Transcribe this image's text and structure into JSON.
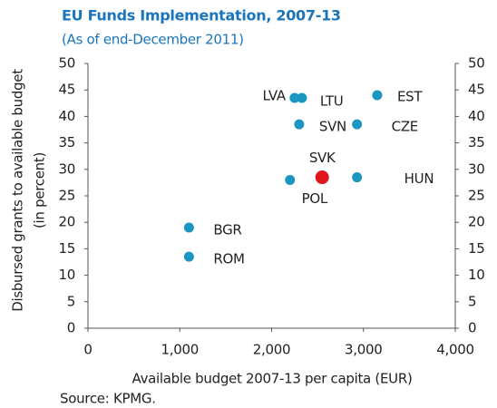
{
  "chart_data": {
    "type": "scatter",
    "title": "EU Funds Implementation, 2007-13",
    "subtitle": "(As of end-December 2011)",
    "ylabel": [
      "Disbursed grants to available budget",
      "(in percent)"
    ],
    "xlabel": "Available budget 2007-13 per capita (EUR)",
    "source": "Source: KPMG.",
    "labels": [
      "LVA",
      "LTU",
      "EST",
      "SVN",
      "CZE",
      "SVK",
      "POL",
      "HUN",
      "BGR",
      "ROM"
    ],
    "x": [
      2250,
      2330,
      3150,
      2300,
      2930,
      2550,
      2200,
      2930,
      1100,
      1100
    ],
    "values": [
      43.5,
      43.5,
      44,
      38.5,
      38.5,
      28.5,
      28,
      28.5,
      19,
      13.5
    ],
    "colors": [
      "#1a96c0",
      "#1a96c0",
      "#1a96c0",
      "#1a96c0",
      "#1a96c0",
      "#e0161d",
      "#1a96c0",
      "#1a96c0",
      "#1a96c0",
      "#1a96c0"
    ],
    "xlim": [
      0,
      4000
    ],
    "xticks": [
      0,
      {
        "value": 1000,
        "label": "1,000"
      },
      {
        "value": 2000,
        "label": "2,000"
      },
      {
        "value": 3000,
        "label": "3,000"
      },
      {
        "value": 4000,
        "label": "4,000"
      }
    ],
    "ylim": [
      0,
      50
    ],
    "yticks": [
      0,
      5,
      10,
      15,
      20,
      25,
      30,
      35,
      40,
      45,
      50
    ],
    "y_right_ticks": true
  }
}
